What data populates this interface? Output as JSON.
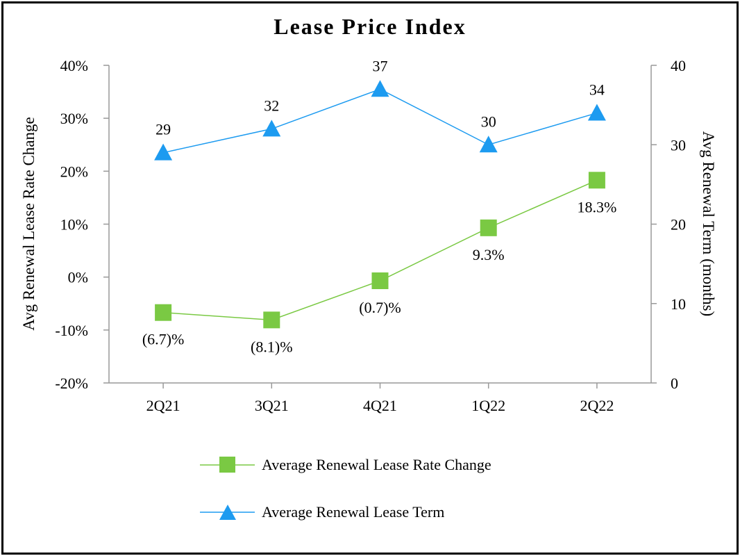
{
  "chart_data": {
    "type": "line",
    "title": "Lease Price Index",
    "categories": [
      "2Q21",
      "3Q21",
      "4Q21",
      "1Q22",
      "2Q22"
    ],
    "y_left": {
      "label": "Avg Renewal Lease Rate Change",
      "range": [
        -20,
        40
      ],
      "ticks": [
        -20,
        -10,
        0,
        10,
        20,
        30,
        40
      ],
      "tick_labels": [
        "-20%",
        "-10%",
        "0%",
        "10%",
        "20%",
        "30%",
        "40%"
      ]
    },
    "y_right": {
      "label": "Avg Renewal Term (months)",
      "range": [
        0,
        40
      ],
      "ticks": [
        0,
        10,
        20,
        30,
        40
      ],
      "tick_labels": [
        "0",
        "10",
        "20",
        "30",
        "40"
      ]
    },
    "series": [
      {
        "name": "Average Renewal Lease Rate Change",
        "axis": "left",
        "color": "#7ac943",
        "marker": "square",
        "values": [
          -6.7,
          -8.1,
          -0.7,
          9.3,
          18.3
        ],
        "labels": [
          "(6.7)%",
          "(8.1)%",
          "(0.7)%",
          "9.3%",
          "18.3%"
        ],
        "label_position": [
          "below",
          "below",
          "below",
          "below",
          "below"
        ]
      },
      {
        "name": "Average Renewal Lease Term",
        "axis": "right",
        "color": "#1d9bf0",
        "marker": "triangle",
        "values": [
          29,
          32,
          37,
          30,
          34
        ],
        "labels": [
          "29",
          "32",
          "37",
          "30",
          "34"
        ],
        "label_position": [
          "above",
          "above",
          "above",
          "above",
          "above"
        ]
      }
    ],
    "legend": [
      "Average Renewal Lease Rate Change",
      "Average Renewal Lease Term"
    ],
    "legend_position": "bottom",
    "grid": false
  }
}
